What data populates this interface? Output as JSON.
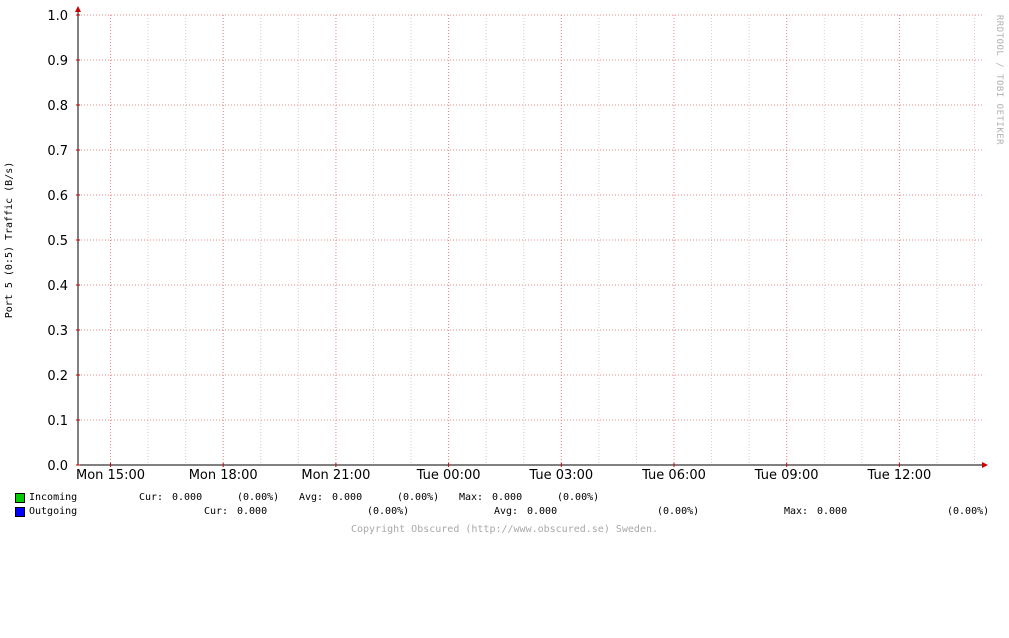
{
  "chart_data": {
    "type": "line",
    "ylabel": "Port 5 (0:5) Traffic (B/s)",
    "ylim": [
      0.0,
      1.0
    ],
    "yticks": [
      "0.0",
      "0.1",
      "0.2",
      "0.3",
      "0.4",
      "0.5",
      "0.6",
      "0.7",
      "0.8",
      "0.9",
      "1.0"
    ],
    "xticks": [
      "Mon 15:00",
      "Mon 18:00",
      "Mon 21:00",
      "Tue 00:00",
      "Tue 03:00",
      "Tue 06:00",
      "Tue 09:00",
      "Tue 12:00"
    ],
    "grid": true,
    "series": [
      {
        "name": "Incoming",
        "color": "#00cc00",
        "values": []
      },
      {
        "name": "Outgoing",
        "color": "#0000ff",
        "values": []
      }
    ]
  },
  "watermark": "RRDTOOL / TOBI OETIKER",
  "legend": {
    "incoming": {
      "name": "Incoming",
      "color": "#00cc00",
      "cur_label": "Cur:",
      "cur": "0.000",
      "cur_pct": "(0.00%)",
      "avg_label": "Avg:",
      "avg": "0.000",
      "avg_pct": "(0.00%)",
      "max_label": "Max:",
      "max": "0.000",
      "max_pct": "(0.00%)"
    },
    "outgoing": {
      "name": "Outgoing",
      "color": "#0000ff",
      "cur_label": "Cur:",
      "cur": "0.000",
      "cur_pct": "(0.00%)",
      "avg_label": "Avg:",
      "avg": "0.000",
      "avg_pct": "(0.00%)",
      "max_label": "Max:",
      "max": "0.000",
      "max_pct": "(0.00%)"
    }
  },
  "copyright": "Copyright Obscured (http://www.obscured.se) Sweden."
}
